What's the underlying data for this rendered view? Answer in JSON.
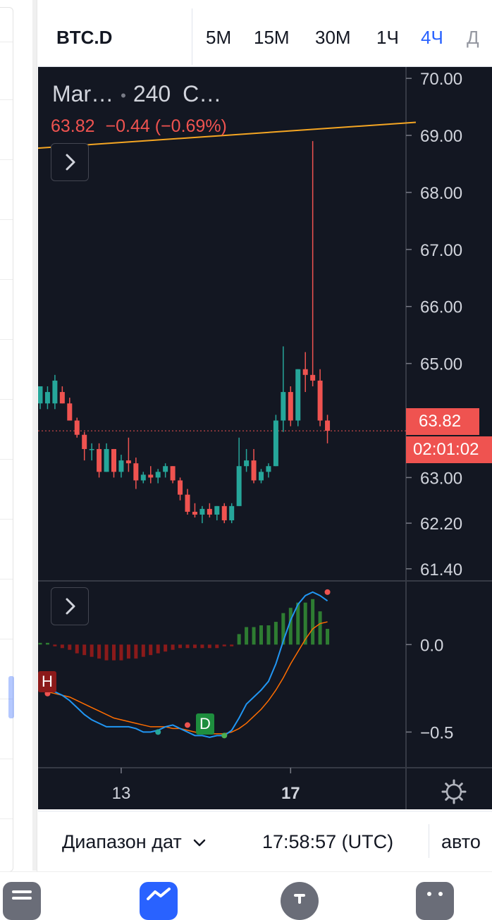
{
  "header": {
    "symbol": "BTC.D",
    "timeframes": [
      {
        "label": "5M",
        "active": false
      },
      {
        "label": "15M",
        "active": false
      },
      {
        "label": "30M",
        "active": false
      },
      {
        "label": "1Ч",
        "active": false
      },
      {
        "label": "4Ч",
        "active": true
      },
      {
        "label": "Д",
        "active": false
      }
    ]
  },
  "legend": {
    "name": "Mar…",
    "interval": "240",
    "source": "C…",
    "last": "63.82",
    "change": "−0.44",
    "change_pct": "(−0.69%)"
  },
  "price_tags": {
    "last_price": "63.82",
    "countdown": "02:01:02"
  },
  "indicator": {
    "signal_labels": [
      "H",
      "D"
    ]
  },
  "bottom": {
    "range_label": "Диапазон дат",
    "clock": "17:58:57 (UTC)",
    "scale_label": "авто"
  },
  "colors": {
    "background": "#131722",
    "up": "#26a69a",
    "down": "#ef5350",
    "accent": "#2962ff",
    "trendline": "#f5a623",
    "macd_line": "#2196f3",
    "signal_line": "#ff6d00"
  },
  "chart_data": {
    "type": "candlestick",
    "ylim": [
      61.2,
      70.2
    ],
    "price_ticks": [
      "70.00",
      "69.00",
      "68.00",
      "67.00",
      "66.00",
      "65.00",
      "64.00",
      "63.00",
      "62.20",
      "61.40"
    ],
    "x_ticks": [
      {
        "label": "13",
        "index": 11,
        "bold": false
      },
      {
        "label": "17",
        "index": 34,
        "bold": true
      }
    ],
    "last_price": 63.82,
    "trendline": [
      [
        -1,
        68.77
      ],
      [
        51,
        69.23
      ]
    ],
    "candles": [
      {
        "o": 64.3,
        "h": 64.6,
        "l": 64.2,
        "c": 64.6
      },
      {
        "o": 64.3,
        "h": 64.6,
        "l": 64.2,
        "c": 64.5
      },
      {
        "o": 64.3,
        "h": 64.8,
        "l": 64.2,
        "c": 64.7
      },
      {
        "o": 64.5,
        "h": 64.6,
        "l": 64.3,
        "c": 64.3
      },
      {
        "o": 64.3,
        "h": 64.4,
        "l": 64.0,
        "c": 64.0
      },
      {
        "o": 64.0,
        "h": 64.05,
        "l": 63.7,
        "c": 63.75
      },
      {
        "o": 63.75,
        "h": 63.8,
        "l": 63.3,
        "c": 63.5
      },
      {
        "o": 63.5,
        "h": 63.6,
        "l": 63.3,
        "c": 63.5
      },
      {
        "o": 63.5,
        "h": 63.6,
        "l": 63.0,
        "c": 63.1
      },
      {
        "o": 63.1,
        "h": 63.6,
        "l": 63.1,
        "c": 63.5
      },
      {
        "o": 63.5,
        "h": 63.5,
        "l": 63.0,
        "c": 63.1
      },
      {
        "o": 63.1,
        "h": 63.4,
        "l": 63.0,
        "c": 63.3
      },
      {
        "o": 63.3,
        "h": 63.7,
        "l": 63.1,
        "c": 63.25
      },
      {
        "o": 63.25,
        "h": 63.35,
        "l": 62.8,
        "c": 62.95
      },
      {
        "o": 62.95,
        "h": 63.1,
        "l": 62.9,
        "c": 63.05
      },
      {
        "o": 63.05,
        "h": 63.2,
        "l": 62.9,
        "c": 63.0
      },
      {
        "o": 63.0,
        "h": 63.15,
        "l": 62.9,
        "c": 63.1
      },
      {
        "o": 63.1,
        "h": 63.25,
        "l": 63.0,
        "c": 63.2
      },
      {
        "o": 63.2,
        "h": 63.2,
        "l": 62.9,
        "c": 62.95
      },
      {
        "o": 62.95,
        "h": 63.0,
        "l": 62.6,
        "c": 62.7
      },
      {
        "o": 62.7,
        "h": 62.8,
        "l": 62.35,
        "c": 62.4
      },
      {
        "o": 62.4,
        "h": 62.55,
        "l": 62.3,
        "c": 62.35
      },
      {
        "o": 62.35,
        "h": 62.5,
        "l": 62.2,
        "c": 62.45
      },
      {
        "o": 62.45,
        "h": 62.55,
        "l": 62.3,
        "c": 62.35
      },
      {
        "o": 62.35,
        "h": 62.5,
        "l": 62.25,
        "c": 62.5
      },
      {
        "o": 62.5,
        "h": 62.55,
        "l": 62.2,
        "c": 62.25
      },
      {
        "o": 62.25,
        "h": 62.55,
        "l": 62.2,
        "c": 62.5
      },
      {
        "o": 62.5,
        "h": 63.7,
        "l": 62.5,
        "c": 63.2
      },
      {
        "o": 63.2,
        "h": 63.5,
        "l": 63.1,
        "c": 63.3
      },
      {
        "o": 63.3,
        "h": 63.5,
        "l": 62.9,
        "c": 62.95
      },
      {
        "o": 62.95,
        "h": 63.15,
        "l": 62.9,
        "c": 63.1
      },
      {
        "o": 63.1,
        "h": 63.25,
        "l": 63.0,
        "c": 63.2
      },
      {
        "o": 63.2,
        "h": 64.1,
        "l": 63.2,
        "c": 64.0
      },
      {
        "o": 64.0,
        "h": 65.3,
        "l": 63.8,
        "c": 64.5
      },
      {
        "o": 64.5,
        "h": 64.6,
        "l": 63.9,
        "c": 64.0
      },
      {
        "o": 64.0,
        "h": 64.9,
        "l": 63.9,
        "c": 64.9
      },
      {
        "o": 64.9,
        "h": 65.2,
        "l": 64.5,
        "c": 64.8
      },
      {
        "o": 64.8,
        "h": 68.9,
        "l": 64.6,
        "c": 64.7
      },
      {
        "o": 64.7,
        "h": 64.9,
        "l": 63.9,
        "c": 64.0
      },
      {
        "o": 64.0,
        "h": 64.1,
        "l": 63.6,
        "c": 63.82
      }
    ],
    "macd": {
      "ticks": [
        {
          "label": "0.0",
          "v": 0
        },
        {
          "label": "−0.5",
          "v": -0.5
        }
      ],
      "ylim": [
        -0.7,
        0.36
      ],
      "histogram": [
        0.01,
        0.01,
        -0.01,
        -0.02,
        -0.03,
        -0.05,
        -0.06,
        -0.07,
        -0.08,
        -0.09,
        -0.09,
        -0.09,
        -0.08,
        -0.08,
        -0.07,
        -0.06,
        -0.05,
        -0.04,
        -0.03,
        -0.02,
        -0.02,
        -0.02,
        -0.02,
        -0.02,
        -0.02,
        -0.01,
        -0.01,
        0.06,
        0.1,
        0.1,
        0.11,
        0.11,
        0.13,
        0.18,
        0.21,
        0.24,
        0.24,
        0.26,
        0.19,
        0.09
      ],
      "macd_line": [
        -0.26,
        -0.26,
        -0.27,
        -0.29,
        -0.32,
        -0.36,
        -0.4,
        -0.43,
        -0.45,
        -0.47,
        -0.47,
        -0.47,
        -0.47,
        -0.48,
        -0.5,
        -0.5,
        -0.49,
        -0.47,
        -0.46,
        -0.48,
        -0.5,
        -0.52,
        -0.52,
        -0.53,
        -0.52,
        -0.52,
        -0.49,
        -0.42,
        -0.34,
        -0.3,
        -0.26,
        -0.21,
        -0.11,
        0.02,
        0.14,
        0.23,
        0.28,
        0.3,
        0.28,
        0.25
      ],
      "signal_line": [
        -0.26,
        -0.27,
        -0.28,
        -0.29,
        -0.3,
        -0.32,
        -0.34,
        -0.36,
        -0.38,
        -0.4,
        -0.42,
        -0.43,
        -0.44,
        -0.45,
        -0.46,
        -0.47,
        -0.47,
        -0.47,
        -0.48,
        -0.48,
        -0.49,
        -0.5,
        -0.51,
        -0.51,
        -0.51,
        -0.51,
        -0.5,
        -0.48,
        -0.45,
        -0.41,
        -0.37,
        -0.32,
        -0.26,
        -0.19,
        -0.11,
        -0.04,
        0.03,
        0.09,
        0.12,
        0.13
      ],
      "markers": [
        {
          "i": 1,
          "v": -0.28,
          "color": "#ef5350"
        },
        {
          "i": 16,
          "v": -0.5,
          "color": "#26a69a"
        },
        {
          "i": 20,
          "v": -0.46,
          "color": "#ef5350"
        },
        {
          "i": 25,
          "v": -0.52,
          "color": "#4caf50"
        },
        {
          "i": 41,
          "v": 0.3,
          "color": "#ef5350"
        }
      ]
    }
  }
}
